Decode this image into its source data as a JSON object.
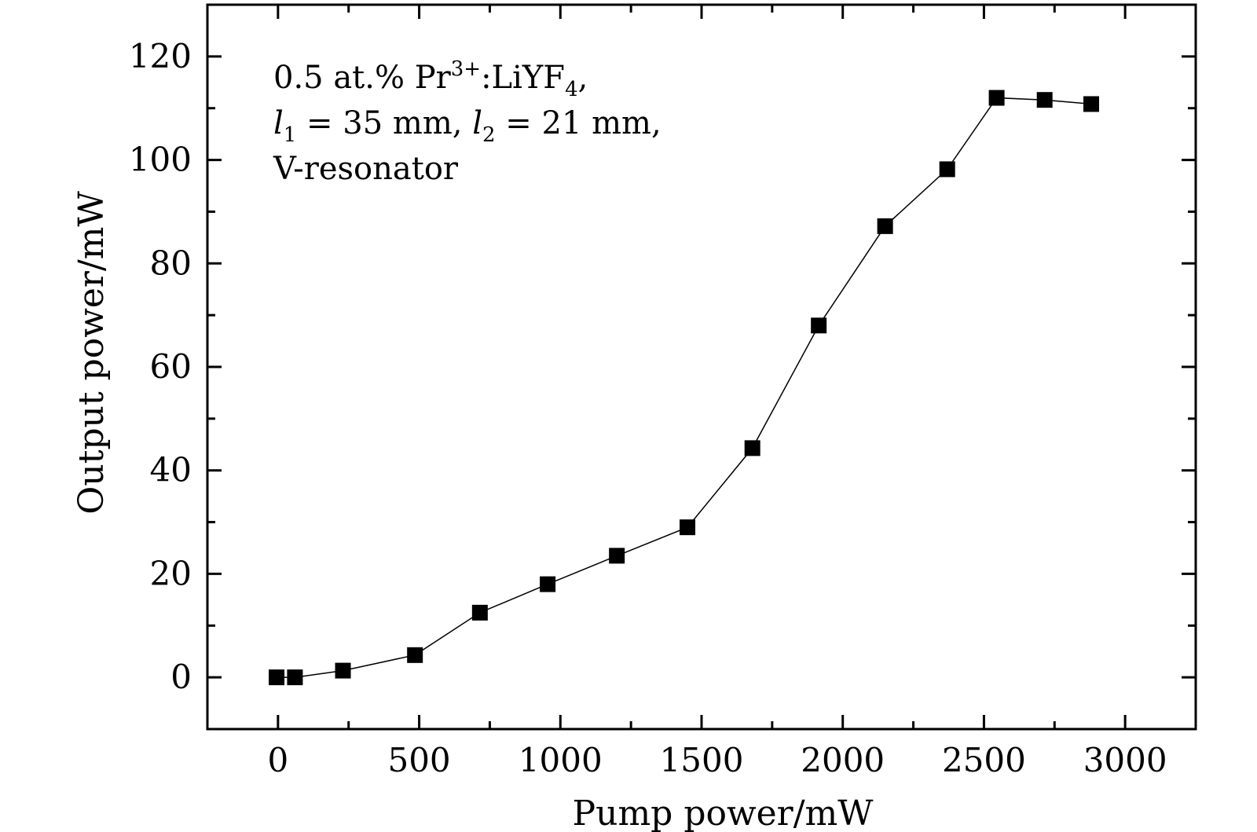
{
  "chart_data": {
    "type": "line",
    "xlabel": "Pump power/mW",
    "ylabel": "Output power/mW",
    "xlim": [
      -250,
      3250
    ],
    "ylim": [
      -10,
      130
    ],
    "xticks": [
      0,
      500,
      1000,
      1500,
      2000,
      2500,
      3000
    ],
    "yticks": [
      0,
      20,
      40,
      60,
      80,
      100,
      120
    ],
    "grid": false,
    "marker": "square",
    "annotation": {
      "line1": "0.5 at.% Pr",
      "line1_sup": "3+",
      "line1_rest": ":LiYF",
      "line1_sub": "4",
      "line1_end": ",",
      "line2_l1": "l",
      "line2_sub1": "1",
      "line2_mid": " = 35 mm, ",
      "line2_l2": "l",
      "line2_sub2": "2",
      "line2_end": " = 21 mm,",
      "line3": "V-resonator"
    },
    "series": [
      {
        "x": [
          -5,
          60,
          230,
          485,
          715,
          955,
          1200,
          1450,
          1680,
          1915,
          2150,
          2370,
          2545,
          2715,
          2880
        ],
        "y": [
          0,
          0,
          1.3,
          4.3,
          12.5,
          18,
          23.5,
          29,
          44.3,
          68,
          87.2,
          98.2,
          112,
          111.6,
          110.8
        ]
      }
    ]
  }
}
